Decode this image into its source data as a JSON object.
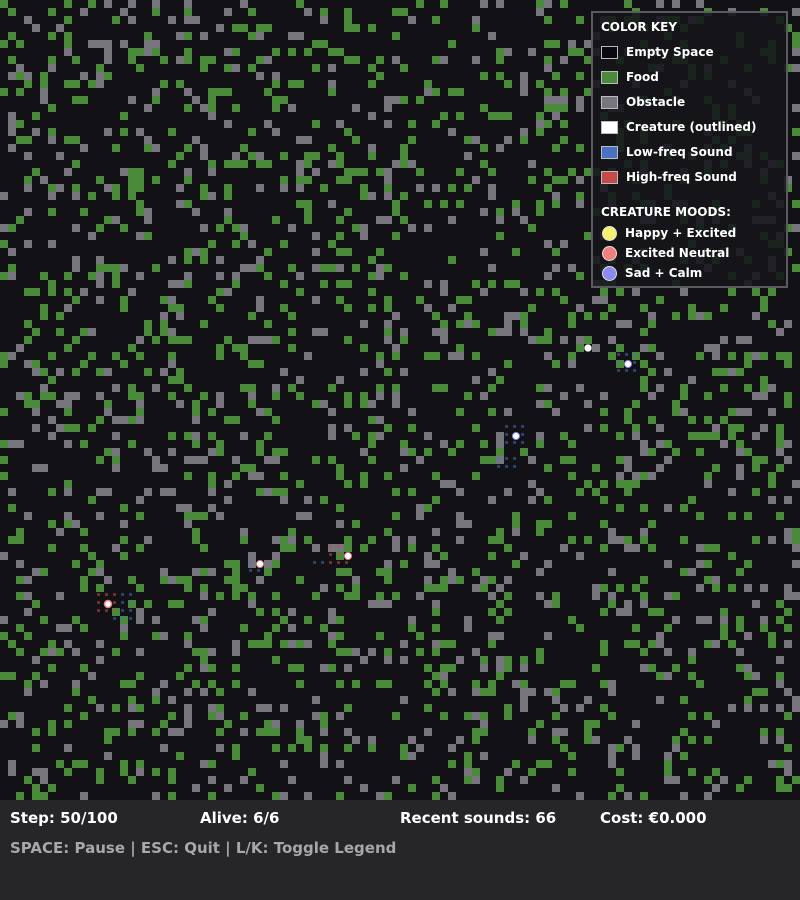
{
  "colors": {
    "background": "#111116",
    "food": "#4a8a3a",
    "obstacle": "#76767c",
    "creature": "#ffffff",
    "low_freq_sound": "#4a72c4",
    "high_freq_sound": "#c44a4a",
    "mood_happy_excited": "#f5f06e",
    "mood_excited_neutral": "#f08080",
    "mood_sad_calm": "#8a8af0"
  },
  "legend": {
    "color_key_title": "COLOR KEY",
    "items": [
      {
        "label": "Empty Space",
        "color": "#0a0a0e"
      },
      {
        "label": "Food",
        "color": "#4a8a3a"
      },
      {
        "label": "Obstacle",
        "color": "#76767c"
      },
      {
        "label": "Creature (outlined)",
        "color": "#ffffff"
      },
      {
        "label": "Low-freq Sound",
        "color": "#4a72c4"
      },
      {
        "label": "High-freq Sound",
        "color": "#c44a4a"
      }
    ],
    "moods_title": "CREATURE MOODS:",
    "moods": [
      {
        "label": "Happy + Excited",
        "color": "#f5f06e"
      },
      {
        "label": "Excited Neutral",
        "color": "#f08080"
      },
      {
        "label": "Sad + Calm",
        "color": "#8a8af0"
      }
    ]
  },
  "hud": {
    "step": "Step: 50/100",
    "alive": "Alive: 6/6",
    "sounds": "Recent sounds: 66",
    "cost": "Cost: €0.000",
    "help": "SPACE: Pause | ESC: Quit | L/K: Toggle Legend"
  }
}
